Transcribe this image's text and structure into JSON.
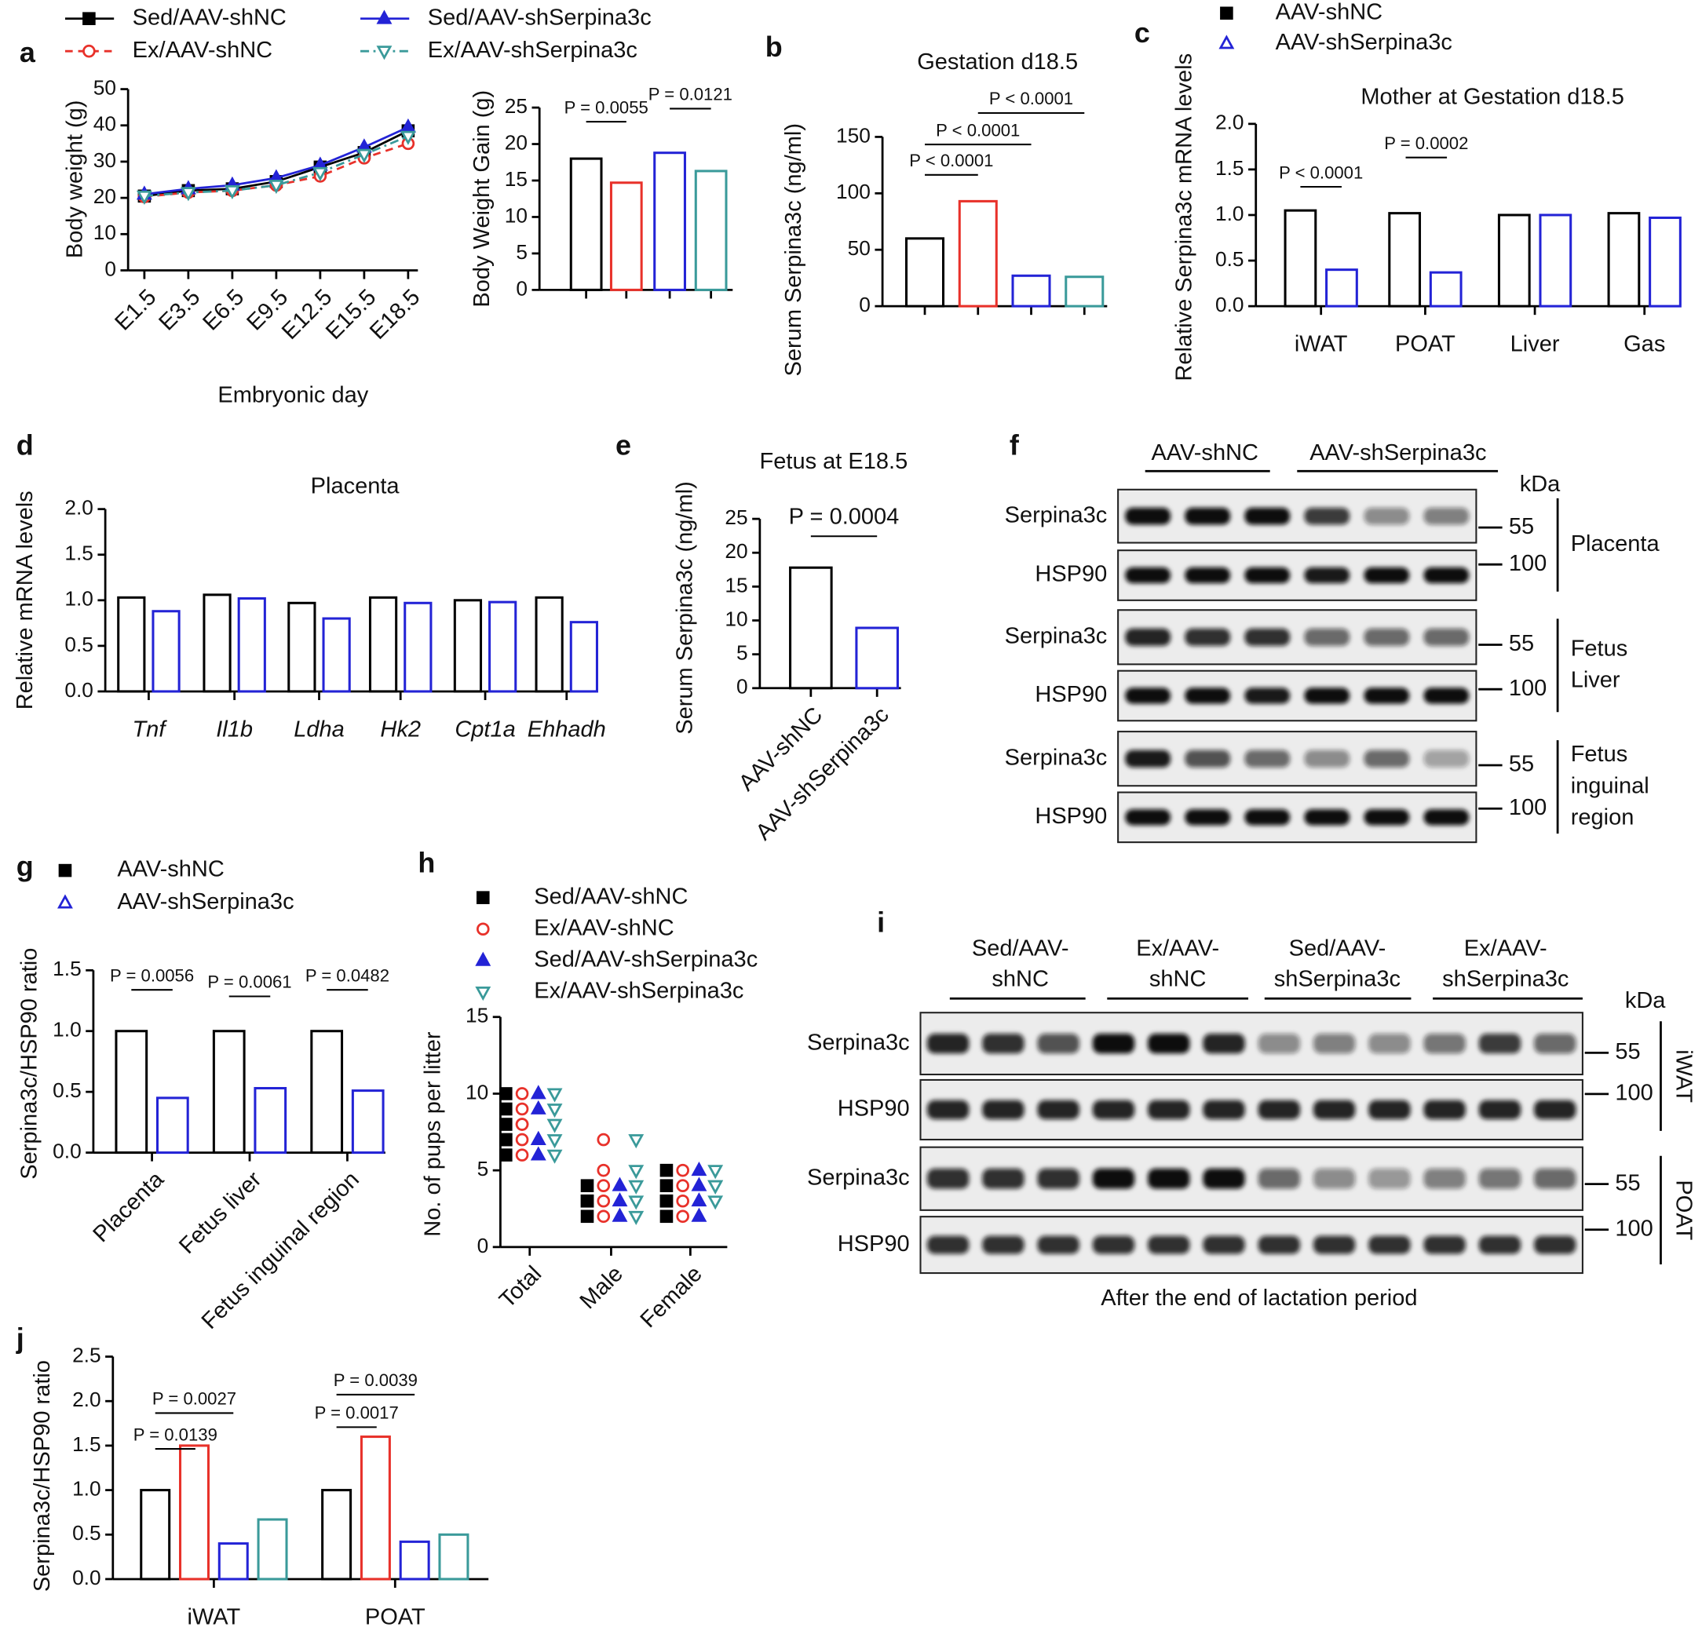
{
  "chart_data": [
    {
      "type": "line",
      "panel": "a",
      "ylabel": "Body weight (g)",
      "xlabel": "Embryonic day",
      "categories": [
        "E1.5",
        "E3.5",
        "E6.5",
        "E9.5",
        "E12.5",
        "E15.5",
        "E18.5"
      ],
      "ylim": [
        0,
        50
      ],
      "yticks": [
        0,
        10,
        20,
        30,
        40,
        50
      ],
      "series": [
        {
          "name": "Sed/AAV-shNC",
          "color": "#000000",
          "linestyle": "solid",
          "marker": "square",
          "filled": true,
          "values": [
            20.5,
            22,
            22.5,
            24.5,
            28.5,
            32.5,
            38.5
          ]
        },
        {
          "name": "Ex/AAV-shNC",
          "color": "#e8312a",
          "linestyle": "dashed",
          "marker": "circle",
          "filled": false,
          "values": [
            20.3,
            21.5,
            22,
            23.5,
            26,
            31,
            35
          ]
        },
        {
          "name": "Sed/AAV-shSerpina3c",
          "color": "#2323d6",
          "linestyle": "solid",
          "marker": "triangle",
          "filled": true,
          "values": [
            21,
            22.5,
            23.5,
            25.5,
            29,
            34,
            39.5
          ]
        },
        {
          "name": "Ex/AAV-shSerpina3c",
          "color": "#3a9a9a",
          "linestyle": "dashdot",
          "marker": "triangle-down",
          "filled": false,
          "values": [
            20.5,
            21.5,
            22,
            23.5,
            27,
            32,
            37
          ]
        }
      ]
    },
    {
      "type": "bar",
      "ylabel": "Body Weight Gain (g)",
      "categories": [
        null,
        null,
        null,
        null
      ],
      "values": [
        18,
        14.7,
        18.8,
        16.3
      ],
      "colors": [
        "#000000",
        "#e8312a",
        "#2323d6",
        "#3a9a9a"
      ],
      "ylim": [
        0,
        25
      ],
      "yticks": [
        0,
        5,
        10,
        15,
        20,
        25
      ],
      "annotations": [
        "P = 0.0055",
        "P = 0.0121"
      ]
    },
    {
      "type": "bar",
      "panel": "b",
      "title": "Gestation d18.5",
      "ylabel": "Serum Serpina3c (ng/ml)",
      "categories": [
        null,
        null,
        null,
        null
      ],
      "values": [
        60,
        93,
        27,
        26
      ],
      "colors": [
        "#000000",
        "#e8312a",
        "#2323d6",
        "#3a9a9a"
      ],
      "ylim": [
        0,
        150
      ],
      "yticks": [
        0,
        50,
        100,
        150
      ],
      "annotations": [
        "P < 0.0001",
        "P < 0.0001",
        "P < 0.0001"
      ]
    },
    {
      "type": "bar",
      "panel": "c",
      "title": "Mother at Gestation d18.5",
      "ylabel": "Relative Serpina3c mRNA levels",
      "categories": [
        "iWAT",
        "POAT",
        "Liver",
        "Gas"
      ],
      "series": [
        {
          "name": "AAV-shNC",
          "color": "#000000",
          "marker": "square",
          "filled": true,
          "values": [
            1.05,
            1.02,
            1.0,
            1.02
          ]
        },
        {
          "name": "AAV-shSerpina3c",
          "color": "#2323d6",
          "marker": "triangle",
          "filled": false,
          "values": [
            0.4,
            0.37,
            1.0,
            0.97
          ]
        }
      ],
      "ylim": [
        0,
        2
      ],
      "yticks": [
        {
          "value": 0,
          "label": "0.0"
        },
        {
          "value": 0.5,
          "label": "0.5"
        },
        {
          "value": 1,
          "label": "1.0"
        },
        {
          "value": 1.5,
          "label": "1.5"
        },
        {
          "value": 2,
          "label": "2.0"
        }
      ],
      "annotations": [
        "P < 0.0001",
        "P = 0.0002"
      ]
    },
    {
      "type": "bar",
      "panel": "d",
      "title": "Placenta",
      "ylabel": "Relative  mRNA levels",
      "italic": true,
      "categories": [
        "Tnf",
        "Il1b",
        "Ldha",
        "Hk2",
        "Cpt1a",
        "Ehhadh"
      ],
      "series": [
        {
          "color": "#000000",
          "values": [
            1.03,
            1.06,
            0.97,
            1.03,
            1.0,
            1.03
          ]
        },
        {
          "color": "#2323d6",
          "values": [
            0.88,
            1.02,
            0.8,
            0.97,
            0.98,
            0.76
          ]
        }
      ],
      "ylim": [
        0,
        2
      ],
      "yticks": [
        {
          "value": 0,
          "label": "0.0"
        },
        {
          "value": 0.5,
          "label": "0.5"
        },
        {
          "value": 1,
          "label": "1.0"
        },
        {
          "value": 1.5,
          "label": "1.5"
        },
        {
          "value": 2,
          "label": "2.0"
        }
      ]
    },
    {
      "type": "bar",
      "panel": "e",
      "title": "Fetus at E18.5",
      "ylabel": "Serum Serpina3c (ng/ml)",
      "categories": [
        "AAV-shNC",
        "AAV-shSerpina3c"
      ],
      "values": [
        17.8,
        8.9
      ],
      "colors": [
        "#000000",
        "#2323d6"
      ],
      "ylim": [
        0,
        25
      ],
      "yticks": [
        0,
        5,
        10,
        15,
        20,
        25
      ],
      "annotations": [
        "P = 0.0004"
      ]
    },
    {
      "type": "bar",
      "panel": "g",
      "ylabel": "Serpina3c/HSP90 ratio",
      "categories": [
        "Placenta",
        "Fetus liver",
        "Fetus inguinal region"
      ],
      "series": [
        {
          "name": "AAV-shNC",
          "color": "#000000",
          "marker": "square",
          "filled": true,
          "values": [
            1.0,
            1.0,
            1.0
          ]
        },
        {
          "name": "AAV-shSerpina3c",
          "color": "#2323d6",
          "marker": "triangle",
          "filled": false,
          "values": [
            0.45,
            0.53,
            0.51
          ]
        }
      ],
      "ylim": [
        0,
        1.5
      ],
      "yticks": [
        {
          "value": 0,
          "label": "0.0"
        },
        {
          "value": 0.5,
          "label": "0.5"
        },
        {
          "value": 1,
          "label": "1.0"
        },
        {
          "value": 1.5,
          "label": "1.5"
        }
      ],
      "annotations": [
        "P = 0.0056",
        "P = 0.0061",
        "P = 0.0482"
      ]
    },
    {
      "type": "dot",
      "panel": "h",
      "ylabel": "No. of pups per litter",
      "categories": [
        "Total",
        "Male",
        "Female"
      ],
      "series": [
        {
          "name": "Sed/AAV-shNC",
          "color": "#000000",
          "marker": "square",
          "filled": true,
          "values": [
            [
              10,
              9,
              8,
              7,
              7,
              6
            ],
            [
              4,
              3,
              3,
              2
            ],
            [
              5,
              4,
              3,
              3,
              2
            ]
          ]
        },
        {
          "name": "Ex/AAV-shNC",
          "color": "#e8312a",
          "marker": "circle",
          "filled": false,
          "values": [
            [
              10,
              9,
              8,
              8,
              7,
              6
            ],
            [
              7,
              5,
              4,
              3,
              2
            ],
            [
              5,
              4,
              3,
              2
            ]
          ]
        },
        {
          "name": "Sed/AAV-shSerpina3c",
          "color": "#2323d6",
          "marker": "triangle",
          "filled": true,
          "values": [
            [
              10,
              9,
              7,
              7,
              6
            ],
            [
              4,
              3,
              2
            ],
            [
              5,
              4,
              3,
              2
            ]
          ]
        },
        {
          "name": "Ex/AAV-shSerpina3c",
          "color": "#3a9a9a",
          "marker": "triangle-down",
          "filled": false,
          "values": [
            [
              10,
              9,
              8,
              7,
              6
            ],
            [
              7,
              5,
              4,
              3,
              2
            ],
            [
              5,
              4,
              4,
              3
            ]
          ]
        }
      ],
      "ylim": [
        0,
        15
      ],
      "yticks": [
        0,
        5,
        10,
        15
      ]
    },
    {
      "type": "bar",
      "panel": "j",
      "ylabel": "Serpina3c/HSP90 ratio",
      "categories": [
        "iWAT",
        "POAT"
      ],
      "series": [
        {
          "color": "#000000",
          "values": [
            1.0,
            1.0
          ]
        },
        {
          "color": "#e8312a",
          "values": [
            1.5,
            1.6
          ]
        },
        {
          "color": "#2323d6",
          "values": [
            0.4,
            0.42
          ]
        },
        {
          "color": "#3a9a9a",
          "values": [
            0.67,
            0.5
          ]
        }
      ],
      "ylim": [
        0,
        2.5
      ],
      "yticks": [
        {
          "value": 0,
          "label": "0.0"
        },
        {
          "value": 0.5,
          "label": "0.5"
        },
        {
          "value": 1,
          "label": "1.0"
        },
        {
          "value": 1.5,
          "label": "1.5"
        },
        {
          "value": 2,
          "label": "2.0"
        },
        {
          "value": 2.5,
          "label": "2.5"
        }
      ],
      "annotations": [
        "P = 0.0027",
        "P = 0.0139",
        "P = 0.0039",
        "P = 0.0017"
      ]
    }
  ],
  "blots": [
    {
      "panel": "f",
      "groups": [
        [
          "AAV-shNC"
        ],
        [
          "AAV-shSerpina3c"
        ]
      ],
      "unit": "kDa",
      "rows": [
        {
          "protein": "Serpina3c",
          "marker": 55
        },
        {
          "protein": "HSP90",
          "marker": 100
        },
        {
          "protein": "Serpina3c",
          "marker": 55
        },
        {
          "protein": "HSP90",
          "marker": 100
        },
        {
          "protein": "Serpina3c",
          "marker": 55
        },
        {
          "protein": "HSP90",
          "marker": 100
        }
      ],
      "sides": [
        [
          "Placenta"
        ],
        [
          "Fetus",
          "Liver"
        ],
        [
          "Fetus",
          "inguinal",
          "region"
        ]
      ]
    },
    {
      "panel": "i",
      "groups": [
        [
          "Sed/AAV-",
          "shNC"
        ],
        [
          "Ex/AAV-",
          "shNC"
        ],
        [
          "Sed/AAV-",
          "shSerpina3c"
        ],
        [
          "Ex/AAV-",
          "shSerpina3c"
        ]
      ],
      "unit": "kDa",
      "rows": [
        {
          "protein": "Serpina3c",
          "marker": 55
        },
        {
          "protein": "HSP90",
          "marker": 100
        },
        {
          "protein": "Serpina3c",
          "marker": 55
        },
        {
          "protein": "HSP90",
          "marker": 100
        }
      ],
      "sides": [
        [
          "iWAT"
        ],
        [
          "POAT"
        ]
      ],
      "caption": "After the end of lactation period"
    }
  ]
}
